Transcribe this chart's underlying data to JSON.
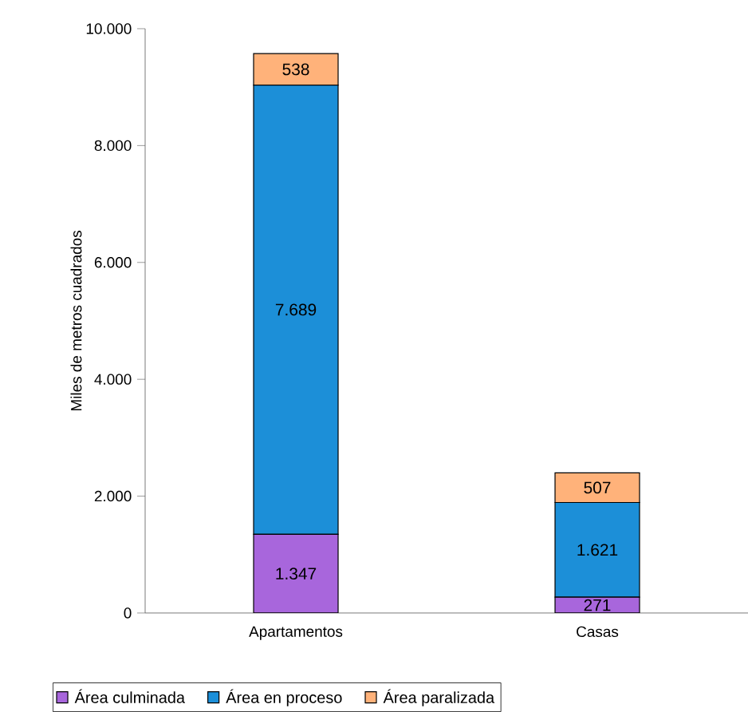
{
  "chart_data": {
    "type": "bar",
    "stacked": true,
    "ylabel": "Miles de metros cuadrados",
    "categories": [
      "Apartamentos",
      "Casas"
    ],
    "ylim": [
      0,
      10000
    ],
    "yticks": [
      {
        "value": 0,
        "label": "0"
      },
      {
        "value": 2000,
        "label": "2.000"
      },
      {
        "value": 4000,
        "label": "4.000"
      },
      {
        "value": 6000,
        "label": "6.000"
      },
      {
        "value": 8000,
        "label": "8.000"
      },
      {
        "value": 10000,
        "label": "10.000"
      }
    ],
    "legend": "bottom",
    "series": [
      {
        "name": "Área culminada",
        "color": "#a866dc",
        "values": [
          1347,
          271
        ],
        "value_labels": [
          "1.347",
          "271"
        ]
      },
      {
        "name": "Área en proceso",
        "color": "#1c8fd8",
        "values": [
          7689,
          1621
        ],
        "value_labels": [
          "7.689",
          "1.621"
        ]
      },
      {
        "name": "Área paralizada",
        "color": "#ffb27a",
        "values": [
          538,
          507
        ],
        "value_labels": [
          "538",
          "507"
        ]
      }
    ]
  }
}
